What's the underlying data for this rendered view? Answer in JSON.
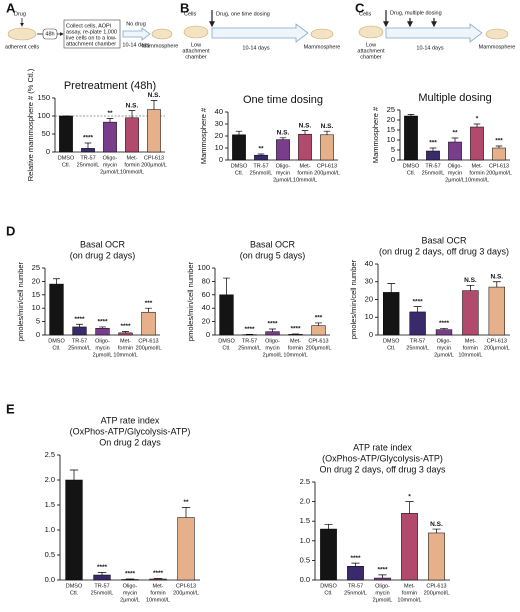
{
  "panels": [
    "A",
    "B",
    "C",
    "D",
    "E"
  ],
  "schematics": [
    {
      "drug": "Drug",
      "cells": "adherent cells",
      "time1": "48h",
      "box": [
        "Collect cells, AOPI",
        "assay, re-plate 1,000",
        "live cells on to a low-",
        "attachment chamber"
      ],
      "condition": "No drug",
      "time2": "10-14 days",
      "result": "Mammosphere"
    },
    {
      "cells": "Cells",
      "chamber": [
        "Low",
        "attachment",
        "chamber"
      ],
      "dosing": "Drug, one time dosing",
      "time": "10-14 days",
      "result": "Mammosphere"
    },
    {
      "cells": "Cells",
      "chamber": [
        "Low",
        "attachment",
        "chamber"
      ],
      "dosing": "Drug, multiple dosing",
      "time": "10-14 days",
      "result": "Mammosphere"
    }
  ],
  "chart_data": [
    {
      "type": "bar",
      "title": [
        "Pretreatment (48h)"
      ],
      "ylabel": "Relative mammosphere # (% Ctl.)",
      "categories": [
        [
          "DMSO",
          "Ctl."
        ],
        [
          "TR-57",
          "25nmol/L"
        ],
        [
          "Oligo-",
          "mycin",
          "2μmol/L"
        ],
        [
          "Met-",
          "formin",
          "10mmol/L"
        ],
        [
          "CPI-613",
          "200μmol/L"
        ]
      ],
      "values": [
        100,
        10,
        83,
        95,
        118
      ],
      "errors": [
        0,
        15,
        10,
        20,
        25
      ],
      "annotations": [
        null,
        "****",
        "**",
        "N.S.",
        "N.S."
      ],
      "colors": [
        "#141414",
        "#3b2a6b",
        "#7a3d8c",
        "#b24a6e",
        "#e6b08a"
      ],
      "ylim": [
        0,
        150
      ],
      "yticks": [
        0,
        50,
        100,
        150
      ],
      "ref_line": 100
    },
    {
      "type": "bar",
      "title": [
        "One time dosing"
      ],
      "ylabel": "Mammosphere #",
      "categories": [
        [
          "DMSO",
          "Ctl."
        ],
        [
          "TR-57",
          "25nmol/L"
        ],
        [
          "Oligo-",
          "mycin",
          "2μmol/L"
        ],
        [
          "Met-",
          "formin",
          "10mmol/L"
        ],
        [
          "CPI-613",
          "200μmol/L"
        ]
      ],
      "values": [
        21,
        4,
        17,
        21.5,
        21
      ],
      "errors": [
        3,
        1,
        1.5,
        3,
        3
      ],
      "annotations": [
        null,
        "**",
        "N.S.",
        "N.S.",
        "N.S."
      ],
      "colors": [
        "#141414",
        "#3b2a6b",
        "#7a3d8c",
        "#b24a6e",
        "#e6b08a"
      ],
      "ylim": [
        0,
        40
      ],
      "yticks": [
        0,
        10,
        20,
        30,
        40
      ]
    },
    {
      "type": "bar",
      "title": [
        "Multiple dosing"
      ],
      "ylabel": "Mammosphere #",
      "categories": [
        [
          "DMSO",
          "Ctl."
        ],
        [
          "TR-57",
          "25nmol/L"
        ],
        [
          "Oligo-",
          "mycin",
          "2μmol/L"
        ],
        [
          "Met-",
          "formin",
          "10mmol/L"
        ],
        [
          "CPI-613",
          "200μmol/L"
        ]
      ],
      "values": [
        22,
        4.5,
        9,
        16.5,
        6
      ],
      "errors": [
        0.8,
        1.5,
        2,
        1.5,
        1
      ],
      "annotations": [
        null,
        "***",
        "**",
        "*",
        "***"
      ],
      "colors": [
        "#141414",
        "#3b2a6b",
        "#7a3d8c",
        "#b24a6e",
        "#e6b08a"
      ],
      "ylim": [
        0,
        25
      ],
      "yticks": [
        0,
        5,
        10,
        15,
        20,
        25
      ]
    },
    {
      "type": "bar",
      "title": [
        "Basal OCR",
        "(on drug 2 days)"
      ],
      "ylabel": "pmoles/min/cell number",
      "categories": [
        [
          "DMSO",
          "Ctl."
        ],
        [
          "TR-57",
          "25nmol/L"
        ],
        [
          "Oligo-",
          "mycin",
          "2μmol/L"
        ],
        [
          "Met-",
          "formin",
          "10mmol/L"
        ],
        [
          "CPI-613",
          "200μmol/L"
        ]
      ],
      "values": [
        19,
        3,
        2.5,
        0.8,
        8.5
      ],
      "errors": [
        2,
        1,
        0.5,
        0.5,
        1.5
      ],
      "annotations": [
        null,
        "****",
        "****",
        "****",
        "***"
      ],
      "colors": [
        "#141414",
        "#3b2a6b",
        "#7a3d8c",
        "#b24a6e",
        "#e6b08a"
      ],
      "ylim": [
        0,
        25
      ],
      "yticks": [
        0,
        5,
        10,
        15,
        20,
        25
      ]
    },
    {
      "type": "bar",
      "title": [
        "Basal OCR",
        "(on drug 5 days)"
      ],
      "ylabel": "pmoles/min/cell number",
      "categories": [
        [
          "DMSO",
          "Ctl."
        ],
        [
          "TR-57",
          "25nmol/L"
        ],
        [
          "Oligo-",
          "mycin",
          "2μmol/L"
        ],
        [
          "Met-",
          "formin",
          "10mmol/L"
        ],
        [
          "CPI-613",
          "200μmol/L"
        ]
      ],
      "values": [
        60,
        0.5,
        5,
        1,
        14
      ],
      "errors": [
        25,
        0.5,
        4,
        0.5,
        4
      ],
      "annotations": [
        null,
        "****",
        "****",
        "****",
        "***"
      ],
      "colors": [
        "#141414",
        "#3b2a6b",
        "#7a3d8c",
        "#b24a6e",
        "#e6b08a"
      ],
      "ylim": [
        0,
        100
      ],
      "yticks": [
        0,
        20,
        40,
        60,
        80,
        100
      ]
    },
    {
      "type": "bar",
      "title": [
        "Basal OCR",
        "(on drug 2 days, off drug 3 days)"
      ],
      "ylabel": "pmoles/min/cell number",
      "categories": [
        [
          "DMSO",
          "Ctl."
        ],
        [
          "TR-57",
          "25nmol/L"
        ],
        [
          "Oligo-",
          "mycin",
          "2μmol/L"
        ],
        [
          "Met-",
          "formin",
          "10mmol/L"
        ],
        [
          "CPI-613",
          "200μmol/L"
        ]
      ],
      "values": [
        24,
        13,
        3,
        25,
        27
      ],
      "errors": [
        5,
        3,
        0.7,
        3,
        3
      ],
      "annotations": [
        null,
        "****",
        "****",
        "N.S.",
        "N.S."
      ],
      "colors": [
        "#141414",
        "#3b2a6b",
        "#7a3d8c",
        "#b24a6e",
        "#e6b08a"
      ],
      "ylim": [
        0,
        40
      ],
      "yticks": [
        0,
        10,
        20,
        30,
        40
      ]
    },
    {
      "type": "bar",
      "title": [
        "ATP rate index",
        "(OxPhos-ATP/Glycolysis-ATP)",
        "On drug 2 days"
      ],
      "categories": [
        [
          "DMSO",
          "Ctl."
        ],
        [
          "TR-57",
          "25nmol/L"
        ],
        [
          "Oligo-",
          "mycin",
          "2μmol/L"
        ],
        [
          "Met-",
          "formin",
          "10mmol/L"
        ],
        [
          "CPI-613",
          "200μmol/L"
        ]
      ],
      "values": [
        2.0,
        0.1,
        0.01,
        0.02,
        1.25
      ],
      "errors": [
        0.2,
        0.05,
        0.01,
        0.01,
        0.2
      ],
      "annotations": [
        null,
        "****",
        "****",
        "****",
        "**"
      ],
      "colors": [
        "#141414",
        "#3b2a6b",
        "#7a3d8c",
        "#b24a6e",
        "#e6b08a"
      ],
      "ylim": [
        0,
        2.5
      ],
      "yticks": [
        {
          "value": 0,
          "label": "0.0"
        },
        0.5,
        {
          "value": 1,
          "label": "1.0"
        },
        1.5,
        {
          "value": 2,
          "label": "2.0"
        },
        2.5
      ]
    },
    {
      "type": "bar",
      "title": [
        "ATP rate index",
        "(OxPhos-ATP/Glycolysis-ATP)",
        "On drug 2 days, off drug 3 days"
      ],
      "categories": [
        [
          "DMSO",
          "Ctl."
        ],
        [
          "TR-57",
          "25nmol/L"
        ],
        [
          "Oligo-",
          "mycin",
          "2μmol/L"
        ],
        [
          "Met-",
          "formin",
          "10mmol/L"
        ],
        [
          "CPI-613",
          "200μmol/L"
        ]
      ],
      "values": [
        1.3,
        0.35,
        0.05,
        1.7,
        1.2
      ],
      "errors": [
        0.12,
        0.08,
        0.08,
        0.3,
        0.1
      ],
      "annotations": [
        null,
        "****",
        "****",
        "*",
        "N.S."
      ],
      "colors": [
        "#141414",
        "#3b2a6b",
        "#7a3d8c",
        "#b24a6e",
        "#e6b08a"
      ],
      "ylim": [
        0,
        2.5
      ],
      "yticks": [
        {
          "value": 0,
          "label": "0.0"
        },
        0.5,
        {
          "value": 1,
          "label": "1.0"
        },
        1.5,
        {
          "value": 2,
          "label": "2.0"
        },
        2.5
      ]
    }
  ]
}
